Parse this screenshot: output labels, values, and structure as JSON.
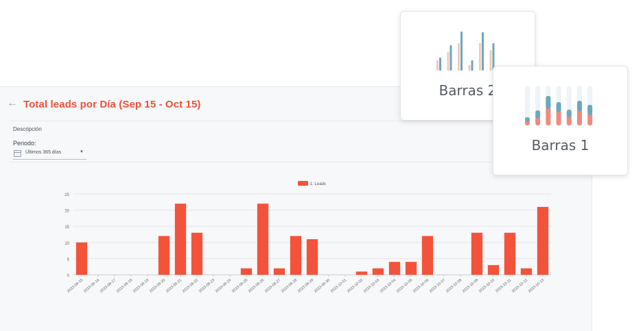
{
  "header": {
    "back_icon": "←",
    "title": "Total leads por Día (Sep 15 - Oct 15)"
  },
  "filters": {
    "description_label": "Descripción",
    "period_label": "Periodo:",
    "period_value": "Últimos 365 días",
    "caret": "▼"
  },
  "chart_data": {
    "type": "bar",
    "legend": [
      "1: Leads"
    ],
    "categories": [
      "2023-09-15",
      "2023-09-16",
      "2023-09-17",
      "2023-09-18",
      "2023-09-19",
      "2023-09-20",
      "2023-09-21",
      "2023-09-22",
      "2023-09-23",
      "2023-09-24",
      "2023-09-25",
      "2023-09-26",
      "2023-09-27",
      "2023-09-28",
      "2023-09-29",
      "2023-09-30",
      "2023-10-01",
      "2023-10-02",
      "2023-10-03",
      "2023-10-04",
      "2023-10-05",
      "2023-10-06",
      "2023-10-07",
      "2023-10-08",
      "2023-10-09",
      "2023-10-10",
      "2023-10-11",
      "2023-10-12",
      "2023-10-13"
    ],
    "series": [
      {
        "name": "1: Leads",
        "values": [
          10,
          0,
          0,
          0,
          0,
          12,
          22,
          13,
          0,
          0,
          2,
          22,
          2,
          12,
          11,
          0,
          0,
          1,
          2,
          4,
          4,
          12,
          0,
          0,
          13,
          3,
          13,
          2,
          21
        ]
      }
    ],
    "yticks": [
      "0",
      "5",
      "10",
      "15",
      "20",
      "25"
    ],
    "ylim": [
      0,
      25
    ],
    "color": "#f4533b",
    "grid": true,
    "legend_position": "top"
  },
  "chart_type_cards": [
    {
      "label": "Barras 2",
      "icon": "grouped-bar-chart-icon"
    },
    {
      "label": "Barras 1",
      "icon": "stacked-bar-chart-icon"
    }
  ]
}
